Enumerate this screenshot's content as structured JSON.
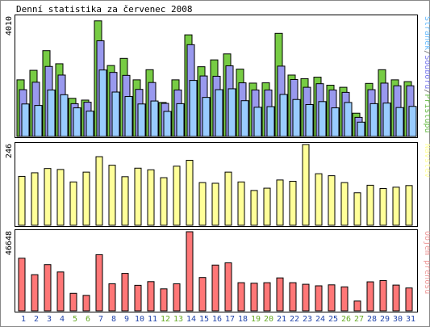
{
  "chart_data": [
    {
      "type": "bar",
      "title": "Denní statistika za červenec 2008",
      "y_max_label": "4010",
      "legend": {
        "label": "Stránek/Souborů/Přístupů",
        "parts": [
          {
            "text": "Stránek",
            "color": "#66bbff"
          },
          {
            "text": "/",
            "color": "#666666"
          },
          {
            "text": "Souborů",
            "color": "#7777ee"
          },
          {
            "text": "/",
            "color": "#666666"
          },
          {
            "text": "Přístupů",
            "color": "#66bb44"
          }
        ]
      },
      "colors": {
        "Stránek": "#99ccff",
        "Souborů": "#9999ee",
        "Přístupů": "#77cc44"
      },
      "ylim": [
        0,
        4010
      ],
      "categories": [
        "1",
        "2",
        "3",
        "4",
        "5",
        "6",
        "7",
        "8",
        "9",
        "10",
        "11",
        "12",
        "13",
        "14",
        "15",
        "16",
        "17",
        "18",
        "19",
        "20",
        "21",
        "22",
        "23",
        "24",
        "25",
        "26",
        "27",
        "28",
        "29",
        "30",
        "31"
      ],
      "series": [
        {
          "name": "Stránek",
          "values": [
            1090,
            1040,
            1560,
            1400,
            960,
            850,
            2230,
            1490,
            1340,
            1090,
            1190,
            840,
            1100,
            1880,
            1310,
            1570,
            1600,
            1200,
            980,
            1000,
            1410,
            1240,
            1070,
            1170,
            960,
            1140,
            480,
            1100,
            1120,
            970,
            1010
          ]
        },
        {
          "name": "Souborů",
          "values": [
            1570,
            1820,
            2350,
            2060,
            1100,
            1150,
            3210,
            2150,
            2050,
            1580,
            1810,
            1110,
            1560,
            3080,
            2030,
            2020,
            2370,
            1800,
            1560,
            1560,
            2360,
            1910,
            1650,
            1770,
            1560,
            1480,
            640,
            1570,
            1790,
            1700,
            1700
          ]
        },
        {
          "name": "Přístupů",
          "values": [
            1900,
            2220,
            2880,
            2440,
            1280,
            1220,
            3880,
            2380,
            2620,
            1900,
            2240,
            1140,
            1900,
            3410,
            2340,
            2570,
            2770,
            2260,
            1790,
            1800,
            3460,
            2060,
            1940,
            1990,
            1720,
            1650,
            780,
            1780,
            2240,
            1900,
            1840
          ]
        }
      ]
    },
    {
      "type": "bar",
      "y_max_label": "246",
      "legend": {
        "label": "Návštěv",
        "color": "#ffff99"
      },
      "ylim": [
        0,
        246
      ],
      "categories": [
        "1",
        "2",
        "3",
        "4",
        "5",
        "6",
        "7",
        "8",
        "9",
        "10",
        "11",
        "12",
        "13",
        "14",
        "15",
        "16",
        "17",
        "18",
        "19",
        "20",
        "21",
        "22",
        "23",
        "24",
        "25",
        "26",
        "27",
        "28",
        "29",
        "30",
        "31"
      ],
      "series": [
        {
          "name": "Návštěv",
          "color": "#ffff99",
          "values": [
            149,
            160,
            173,
            170,
            132,
            162,
            209,
            183,
            148,
            174,
            169,
            145,
            180,
            198,
            130,
            128,
            162,
            132,
            106,
            113,
            138,
            134,
            246,
            157,
            151,
            130,
            99,
            122,
            112,
            116,
            121
          ]
        }
      ]
    },
    {
      "type": "bar",
      "y_max_label": "46648",
      "legend": {
        "label": "Objem přenosu",
        "color": "#ee9999"
      },
      "ylim": [
        0,
        46648
      ],
      "categories": [
        "1",
        "2",
        "3",
        "4",
        "5",
        "6",
        "7",
        "8",
        "9",
        "10",
        "11",
        "12",
        "13",
        "14",
        "15",
        "16",
        "17",
        "18",
        "19",
        "20",
        "21",
        "22",
        "23",
        "24",
        "25",
        "26",
        "27",
        "28",
        "29",
        "30",
        "31"
      ],
      "series": [
        {
          "name": "Objem přenosu",
          "color": "#ff7777",
          "values": [
            31030,
            21310,
            27270,
            22930,
            10340,
            9120,
            33130,
            15970,
            22090,
            15060,
            17230,
            12960,
            15970,
            46648,
            19660,
            27000,
            28300,
            16610,
            16300,
            16600,
            19430,
            16610,
            15670,
            14760,
            15330,
            14150,
            5780,
            17110,
            17880,
            15190,
            13490
          ]
        }
      ]
    }
  ],
  "x_axis": {
    "labels": [
      "1",
      "2",
      "3",
      "4",
      "5",
      "6",
      "7",
      "8",
      "9",
      "10",
      "11",
      "12",
      "13",
      "14",
      "15",
      "16",
      "17",
      "18",
      "19",
      "20",
      "21",
      "22",
      "23",
      "24",
      "25",
      "26",
      "27",
      "28",
      "29",
      "30",
      "31"
    ],
    "weekend_days": [
      "5",
      "6",
      "12",
      "13",
      "19",
      "20",
      "26",
      "27"
    ],
    "normal_color": "#2244aa",
    "weekend_color": "#66aa22"
  },
  "frame_color": "#000000",
  "bg_color": "#ffffff",
  "panel_bg_color": "#ffffff"
}
